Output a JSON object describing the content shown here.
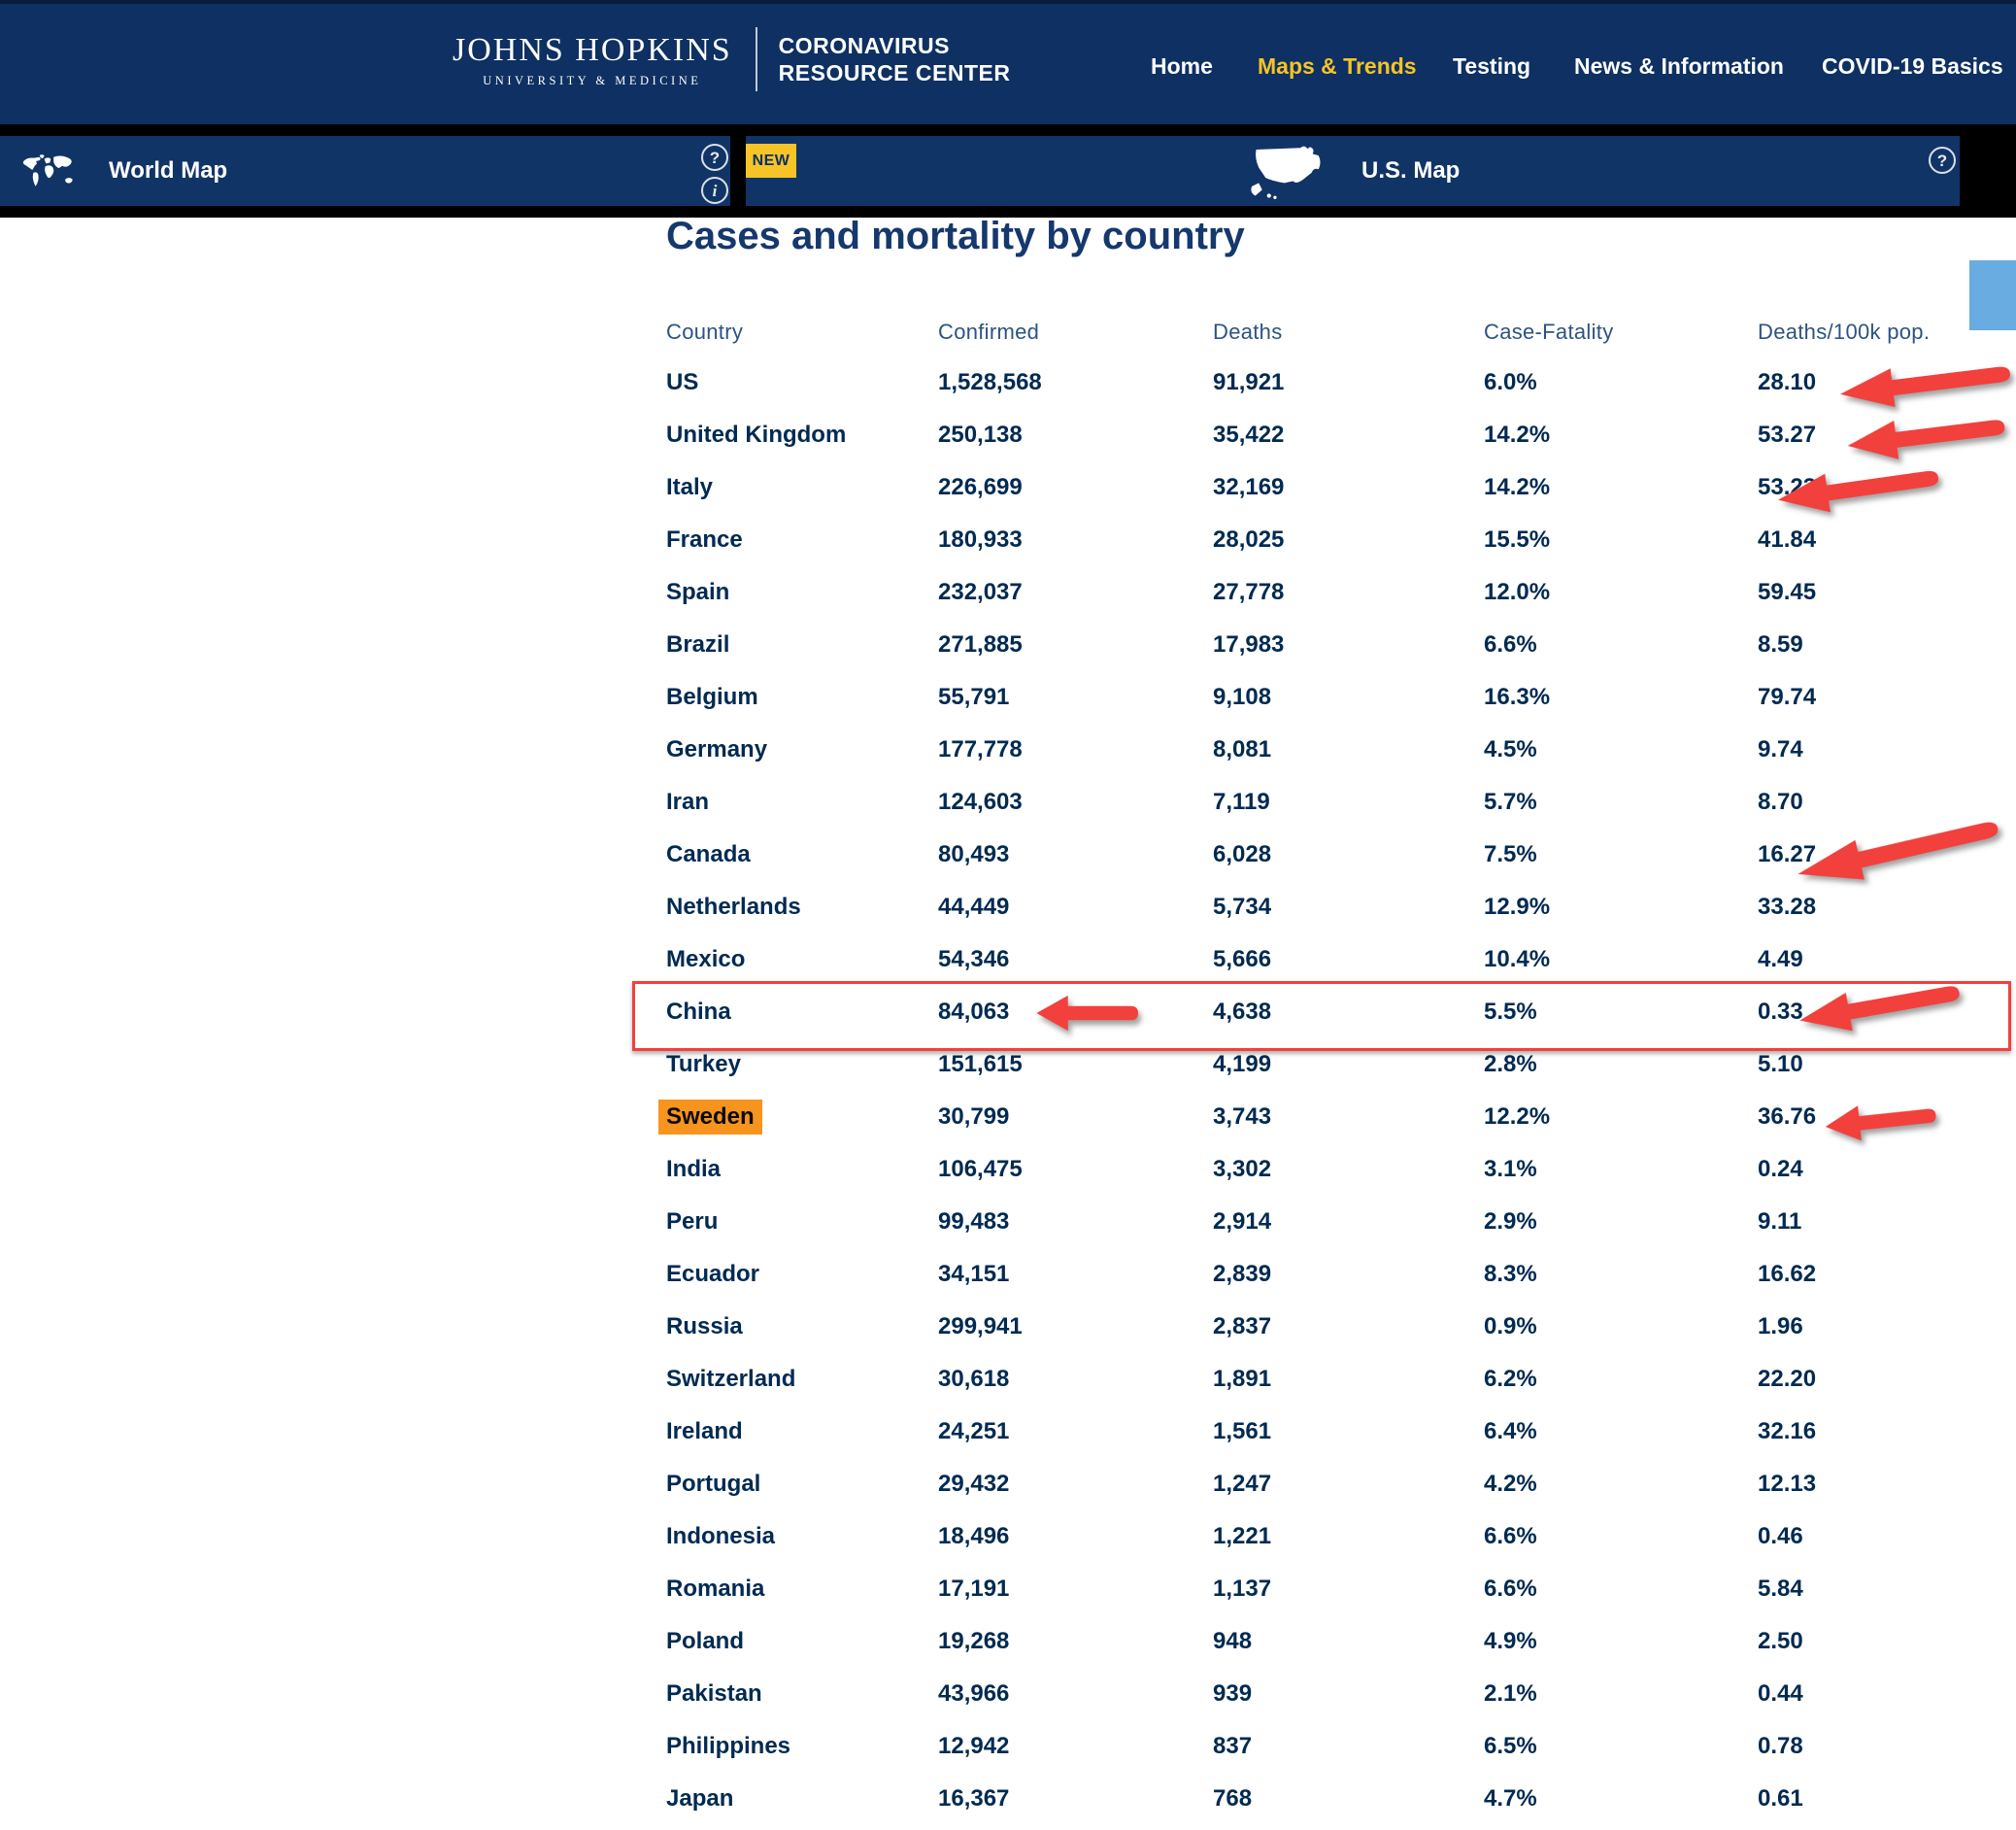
{
  "brand": {
    "institution_line1": "JOHNS HOPKINS",
    "institution_line2": "UNIVERSITY & MEDICINE",
    "product_line1": "CORONAVIRUS",
    "product_line2": "RESOURCE CENTER"
  },
  "nav": {
    "items": [
      {
        "label": "Home",
        "active": false
      },
      {
        "label": "Maps & Trends",
        "active": true
      },
      {
        "label": "Testing",
        "active": false
      },
      {
        "label": "News & Information",
        "active": false
      },
      {
        "label": "COVID-19 Basics",
        "active": false
      }
    ]
  },
  "map_bar": {
    "world_tab_label": "World Map",
    "us_tab_label": "U.S. Map",
    "new_badge": "NEW",
    "help_glyph": "?",
    "info_glyph": "i"
  },
  "main": {
    "title": "Cases and mortality by country",
    "table": {
      "columns": [
        "Country",
        "Confirmed",
        "Deaths",
        "Case-Fatality",
        "Deaths/100k pop."
      ],
      "rows": [
        {
          "country": "US",
          "confirmed": "1,528,568",
          "deaths": "91,921",
          "case_fatality": "6.0%",
          "deaths_per_100k": "28.10",
          "country_highlighted": false,
          "boxed": false
        },
        {
          "country": "United Kingdom",
          "confirmed": "250,138",
          "deaths": "35,422",
          "case_fatality": "14.2%",
          "deaths_per_100k": "53.27",
          "country_highlighted": false,
          "boxed": false
        },
        {
          "country": "Italy",
          "confirmed": "226,699",
          "deaths": "32,169",
          "case_fatality": "14.2%",
          "deaths_per_100k": "53.23",
          "country_highlighted": false,
          "boxed": false
        },
        {
          "country": "France",
          "confirmed": "180,933",
          "deaths": "28,025",
          "case_fatality": "15.5%",
          "deaths_per_100k": "41.84",
          "country_highlighted": false,
          "boxed": false
        },
        {
          "country": "Spain",
          "confirmed": "232,037",
          "deaths": "27,778",
          "case_fatality": "12.0%",
          "deaths_per_100k": "59.45",
          "country_highlighted": false,
          "boxed": false
        },
        {
          "country": "Brazil",
          "confirmed": "271,885",
          "deaths": "17,983",
          "case_fatality": "6.6%",
          "deaths_per_100k": "8.59",
          "country_highlighted": false,
          "boxed": false
        },
        {
          "country": "Belgium",
          "confirmed": "55,791",
          "deaths": "9,108",
          "case_fatality": "16.3%",
          "deaths_per_100k": "79.74",
          "country_highlighted": false,
          "boxed": false
        },
        {
          "country": "Germany",
          "confirmed": "177,778",
          "deaths": "8,081",
          "case_fatality": "4.5%",
          "deaths_per_100k": "9.74",
          "country_highlighted": false,
          "boxed": false
        },
        {
          "country": "Iran",
          "confirmed": "124,603",
          "deaths": "7,119",
          "case_fatality": "5.7%",
          "deaths_per_100k": "8.70",
          "country_highlighted": false,
          "boxed": false
        },
        {
          "country": "Canada",
          "confirmed": "80,493",
          "deaths": "6,028",
          "case_fatality": "7.5%",
          "deaths_per_100k": "16.27",
          "country_highlighted": false,
          "boxed": false
        },
        {
          "country": "Netherlands",
          "confirmed": "44,449",
          "deaths": "5,734",
          "case_fatality": "12.9%",
          "deaths_per_100k": "33.28",
          "country_highlighted": false,
          "boxed": false
        },
        {
          "country": "Mexico",
          "confirmed": "54,346",
          "deaths": "5,666",
          "case_fatality": "10.4%",
          "deaths_per_100k": "4.49",
          "country_highlighted": false,
          "boxed": false
        },
        {
          "country": "China",
          "confirmed": "84,063",
          "deaths": "4,638",
          "case_fatality": "5.5%",
          "deaths_per_100k": "0.33",
          "country_highlighted": false,
          "boxed": true
        },
        {
          "country": "Turkey",
          "confirmed": "151,615",
          "deaths": "4,199",
          "case_fatality": "2.8%",
          "deaths_per_100k": "5.10",
          "country_highlighted": false,
          "boxed": false
        },
        {
          "country": "Sweden",
          "confirmed": "30,799",
          "deaths": "3,743",
          "case_fatality": "12.2%",
          "deaths_per_100k": "36.76",
          "country_highlighted": true,
          "boxed": false
        },
        {
          "country": "India",
          "confirmed": "106,475",
          "deaths": "3,302",
          "case_fatality": "3.1%",
          "deaths_per_100k": "0.24",
          "country_highlighted": false,
          "boxed": false
        },
        {
          "country": "Peru",
          "confirmed": "99,483",
          "deaths": "2,914",
          "case_fatality": "2.9%",
          "deaths_per_100k": "9.11",
          "country_highlighted": false,
          "boxed": false
        },
        {
          "country": "Ecuador",
          "confirmed": "34,151",
          "deaths": "2,839",
          "case_fatality": "8.3%",
          "deaths_per_100k": "16.62",
          "country_highlighted": false,
          "boxed": false
        },
        {
          "country": "Russia",
          "confirmed": "299,941",
          "deaths": "2,837",
          "case_fatality": "0.9%",
          "deaths_per_100k": "1.96",
          "country_highlighted": false,
          "boxed": false
        },
        {
          "country": "Switzerland",
          "confirmed": "30,618",
          "deaths": "1,891",
          "case_fatality": "6.2%",
          "deaths_per_100k": "22.20",
          "country_highlighted": false,
          "boxed": false
        },
        {
          "country": "Ireland",
          "confirmed": "24,251",
          "deaths": "1,561",
          "case_fatality": "6.4%",
          "deaths_per_100k": "32.16",
          "country_highlighted": false,
          "boxed": false
        },
        {
          "country": "Portugal",
          "confirmed": "29,432",
          "deaths": "1,247",
          "case_fatality": "4.2%",
          "deaths_per_100k": "12.13",
          "country_highlighted": false,
          "boxed": false
        },
        {
          "country": "Indonesia",
          "confirmed": "18,496",
          "deaths": "1,221",
          "case_fatality": "6.6%",
          "deaths_per_100k": "0.46",
          "country_highlighted": false,
          "boxed": false
        },
        {
          "country": "Romania",
          "confirmed": "17,191",
          "deaths": "1,137",
          "case_fatality": "6.6%",
          "deaths_per_100k": "5.84",
          "country_highlighted": false,
          "boxed": false
        },
        {
          "country": "Poland",
          "confirmed": "19,268",
          "deaths": "948",
          "case_fatality": "4.9%",
          "deaths_per_100k": "2.50",
          "country_highlighted": false,
          "boxed": false
        },
        {
          "country": "Pakistan",
          "confirmed": "43,966",
          "deaths": "939",
          "case_fatality": "2.1%",
          "deaths_per_100k": "0.44",
          "country_highlighted": false,
          "boxed": false
        },
        {
          "country": "Philippines",
          "confirmed": "12,942",
          "deaths": "837",
          "case_fatality": "6.5%",
          "deaths_per_100k": "0.78",
          "country_highlighted": false,
          "boxed": false
        },
        {
          "country": "Japan",
          "confirmed": "16,367",
          "deaths": "768",
          "case_fatality": "4.7%",
          "deaths_per_100k": "0.61",
          "country_highlighted": false,
          "boxed": false
        }
      ]
    }
  },
  "annotations": {
    "arrow_color": "#f2403c",
    "row_box_color": "#f2403c",
    "country_highlight_color": "#f7941d",
    "boxed_row": "China",
    "highlighted_country": "Sweden",
    "arrows_point_at": [
      "US deaths/100k 28.10",
      "United Kingdom deaths/100k 53.27",
      "Italy deaths/100k 53.23",
      "Canada deaths/100k 16.27",
      "China confirmed 84,063",
      "China deaths/100k 0.33",
      "Sweden deaths/100k 36.76"
    ]
  },
  "colors": {
    "header_navy": "#0e3062",
    "panel_navy": "#113467",
    "accent_yellow": "#f6c426",
    "light_blue_panel": "#69ace1",
    "table_text_navy": "#002a52"
  }
}
